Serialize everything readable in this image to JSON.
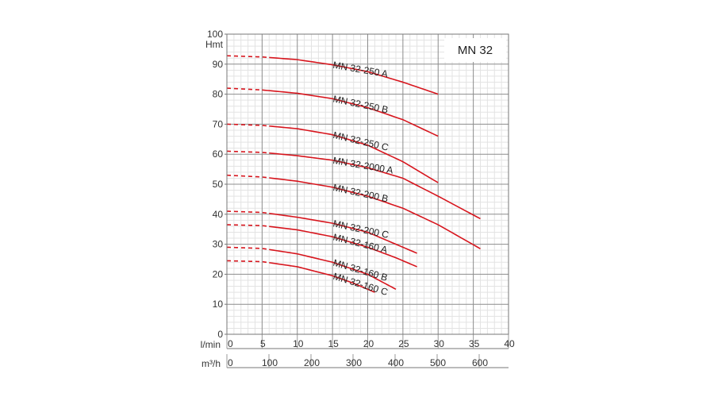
{
  "chart_data": {
    "type": "line",
    "title": "MN 32",
    "ylabel": "Hmt",
    "xlabel": "l/min",
    "x2label": "m³/h",
    "xlim": [
      0,
      40
    ],
    "ylim": [
      0,
      100
    ],
    "x_ticks": [
      "0",
      "5",
      "10",
      "15",
      "20",
      "25",
      "30",
      "35",
      "40"
    ],
    "x2_ticks": [
      "0",
      "100",
      "200",
      "300",
      "400",
      "500",
      "600"
    ],
    "x2_values": [
      0,
      100,
      200,
      300,
      400,
      500,
      600
    ],
    "y_ticks": [
      "0",
      "10",
      "20",
      "30",
      "40",
      "50",
      "60",
      "70",
      "80",
      "90",
      "100"
    ],
    "grid": true,
    "line_color": "#d7151d",
    "series": [
      {
        "name": "MN 32-250 A",
        "dash_end": 6,
        "points": [
          [
            0,
            92.8
          ],
          [
            5,
            92.4
          ],
          [
            10,
            91.5
          ],
          [
            15,
            89.8
          ],
          [
            20,
            87.5
          ],
          [
            25,
            84.0
          ],
          [
            30,
            80.0
          ]
        ]
      },
      {
        "name": "MN 32-250 B",
        "dash_end": 5,
        "points": [
          [
            0,
            82.0
          ],
          [
            5,
            81.4
          ],
          [
            10,
            80.3
          ],
          [
            15,
            78.5
          ],
          [
            20,
            75.5
          ],
          [
            25,
            71.5
          ],
          [
            30,
            66.0
          ]
        ]
      },
      {
        "name": "MN 32-250 C",
        "dash_end": 6,
        "points": [
          [
            0,
            70.0
          ],
          [
            5,
            69.6
          ],
          [
            10,
            68.5
          ],
          [
            15,
            66.5
          ],
          [
            20,
            63.0
          ],
          [
            25,
            57.5
          ],
          [
            30,
            50.5
          ]
        ]
      },
      {
        "name": "MN 32-2000 A",
        "dash_end": 6,
        "points": [
          [
            0,
            61.0
          ],
          [
            5,
            60.6
          ],
          [
            10,
            59.5
          ],
          [
            15,
            58.0
          ],
          [
            20,
            55.5
          ],
          [
            25,
            52.0
          ],
          [
            30,
            46.0
          ],
          [
            36,
            38.5
          ]
        ]
      },
      {
        "name": "MN 32-200 B",
        "dash_end": 6,
        "points": [
          [
            0,
            53.0
          ],
          [
            5,
            52.4
          ],
          [
            10,
            51.0
          ],
          [
            15,
            49.0
          ],
          [
            20,
            46.0
          ],
          [
            25,
            42.0
          ],
          [
            30,
            36.5
          ],
          [
            36,
            28.5
          ]
        ]
      },
      {
        "name": "MN 32-200 C",
        "dash_end": 6,
        "points": [
          [
            0,
            41.0
          ],
          [
            5,
            40.6
          ],
          [
            10,
            39.0
          ],
          [
            15,
            37.0
          ],
          [
            20,
            34.0
          ],
          [
            24,
            30.0
          ],
          [
            27,
            27.0
          ]
        ]
      },
      {
        "name": "MN 32-160 A",
        "dash_end": 6,
        "points": [
          [
            0,
            36.5
          ],
          [
            5,
            36.2
          ],
          [
            10,
            34.8
          ],
          [
            15,
            32.5
          ],
          [
            20,
            29.0
          ],
          [
            24,
            25.5
          ],
          [
            27,
            22.5
          ]
        ]
      },
      {
        "name": "MN 32-160 B",
        "dash_end": 6,
        "points": [
          [
            0,
            29.0
          ],
          [
            5,
            28.6
          ],
          [
            10,
            26.8
          ],
          [
            15,
            24.0
          ],
          [
            20,
            20.0
          ],
          [
            24,
            15.0
          ]
        ]
      },
      {
        "name": "MN 32-160 C",
        "dash_end": 6,
        "points": [
          [
            0,
            24.5
          ],
          [
            5,
            24.2
          ],
          [
            10,
            22.5
          ],
          [
            15,
            19.5
          ],
          [
            18,
            17.0
          ],
          [
            21,
            14.0
          ]
        ]
      }
    ]
  }
}
